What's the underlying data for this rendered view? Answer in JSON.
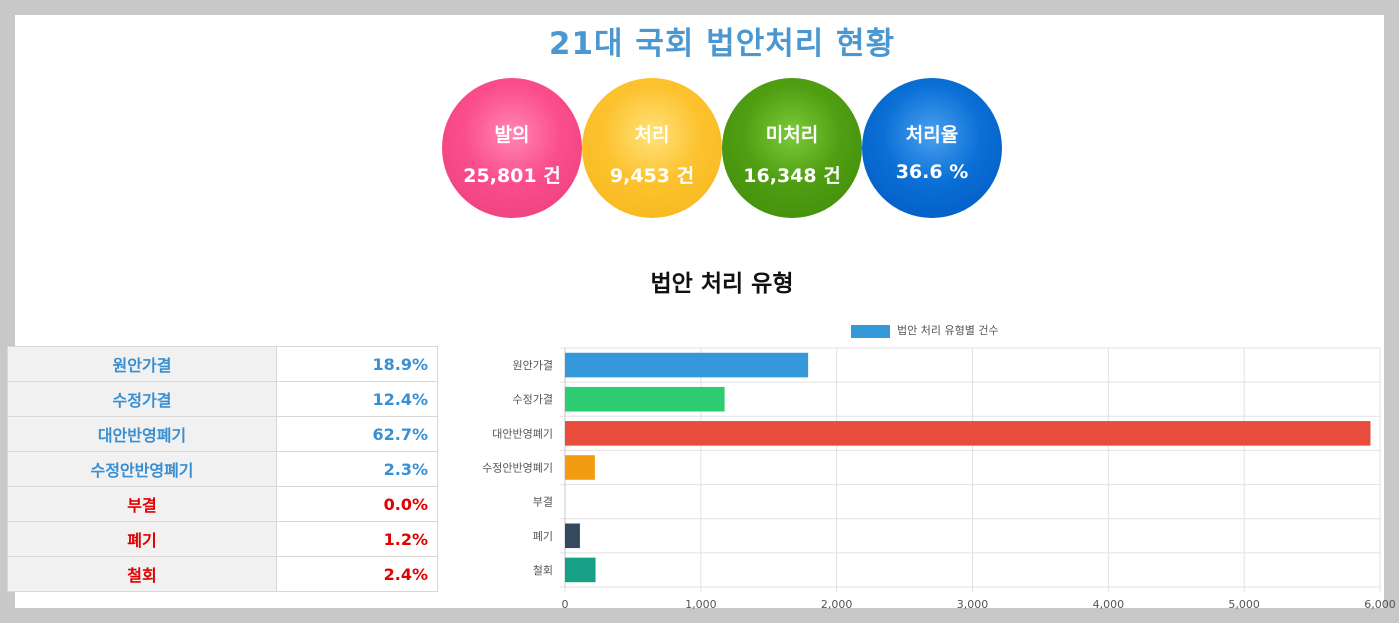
{
  "title": "21대 국회 법안처리 현황",
  "stats": [
    {
      "label": "발의",
      "value": "25,801 건"
    },
    {
      "label": "처리",
      "value": "9,453 건"
    },
    {
      "label": "미처리",
      "value": "16,348 건"
    },
    {
      "label": "처리율",
      "value": "36.6 %"
    }
  ],
  "section_title": "법안 처리 유형",
  "table": [
    {
      "name": "원안가결",
      "pct": "18.9%",
      "color": "#3a8fd1"
    },
    {
      "name": "수정가결",
      "pct": "12.4%",
      "color": "#3a8fd1"
    },
    {
      "name": "대안반영폐기",
      "pct": "62.7%",
      "color": "#3a8fd1"
    },
    {
      "name": "수정안반영폐기",
      "pct": "2.3%",
      "color": "#3a8fd1"
    },
    {
      "name": "부결",
      "pct": "0.0%",
      "color": "#e00000"
    },
    {
      "name": "폐기",
      "pct": "1.2%",
      "color": "#e00000"
    },
    {
      "name": "철회",
      "pct": "2.4%",
      "color": "#e00000"
    }
  ],
  "chart_data": {
    "type": "bar",
    "orientation": "horizontal",
    "categories": [
      "원안가결",
      "수정가결",
      "대안반영폐기",
      "수정안반영폐기",
      "부결",
      "폐기",
      "철회"
    ],
    "series": [
      {
        "name": "법안 처리 유형별 건수",
        "values": [
          1790,
          1175,
          5930,
          220,
          0,
          110,
          225
        ]
      }
    ],
    "colors": [
      "#3498db",
      "#2ecc71",
      "#e74c3c",
      "#f39c12",
      "#9b59b6",
      "#34495e",
      "#16a085"
    ],
    "xlim": [
      0,
      6000
    ],
    "xticks": [
      "0",
      "1,000",
      "2,000",
      "3,000",
      "4,000",
      "5,000",
      "6,000"
    ],
    "grid": true,
    "legend_position": "top"
  }
}
